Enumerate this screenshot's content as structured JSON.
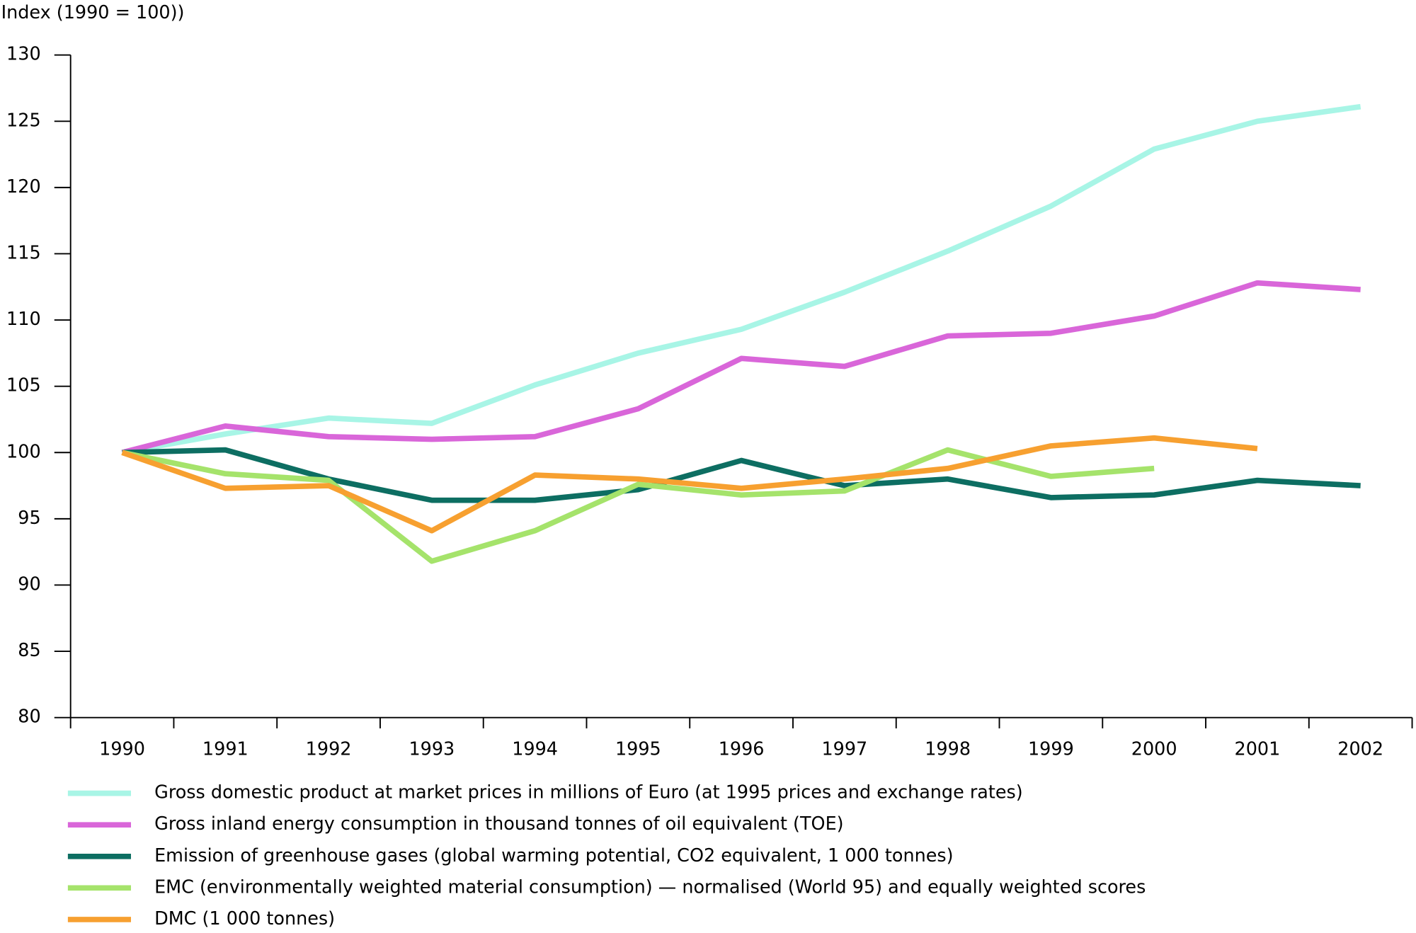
{
  "chart_data": {
    "type": "line",
    "y_label": "Index (1990 = 100))",
    "categories": [
      "1990",
      "1991",
      "1992",
      "1993",
      "1994",
      "1995",
      "1996",
      "1997",
      "1998",
      "1999",
      "2000",
      "2001",
      "2002"
    ],
    "ylim": [
      80,
      130
    ],
    "yticks": [
      80,
      85,
      90,
      95,
      100,
      105,
      110,
      115,
      120,
      125,
      130
    ],
    "series": [
      {
        "name": "Gross domestic product at market prices in millions of Euro (at 1995 prices and exchange rates)",
        "color": "#a8f5e6",
        "values": [
          100,
          101.4,
          102.6,
          102.2,
          105.1,
          107.5,
          109.3,
          112.1,
          115.2,
          118.6,
          122.9,
          125,
          126.1
        ]
      },
      {
        "name": "Gross inland energy consumption in thousand tonnes of oil equivalent (TOE)",
        "color": "#d966d9",
        "values": [
          100,
          102,
          101.2,
          101,
          101.2,
          103.3,
          107.1,
          106.5,
          108.8,
          109,
          110.3,
          112.8,
          112.3
        ]
      },
      {
        "name": "Emission of greenhouse gases (global warming potential, CO2 equivalent, 1 000 tonnes)",
        "color": "#0d6e62",
        "values": [
          100,
          100.2,
          98,
          96.4,
          96.4,
          97.2,
          99.4,
          97.5,
          98,
          96.6,
          96.8,
          97.9,
          97.5
        ]
      },
      {
        "name": "EMC (environmentally weighted material consumption) — normalised (World 95) and equally weighted scores",
        "color": "#a5e36b",
        "values": [
          100,
          98.4,
          97.9,
          91.8,
          94.1,
          97.6,
          96.8,
          97.1,
          100.2,
          98.2,
          98.8,
          null,
          null
        ]
      },
      {
        "name": "DMC (1 000 tonnes)",
        "color": "#f7a030",
        "values": [
          100,
          97.3,
          97.5,
          94.1,
          98.3,
          98,
          97.3,
          98,
          98.8,
          100.5,
          101.1,
          100.3,
          null
        ]
      }
    ]
  }
}
